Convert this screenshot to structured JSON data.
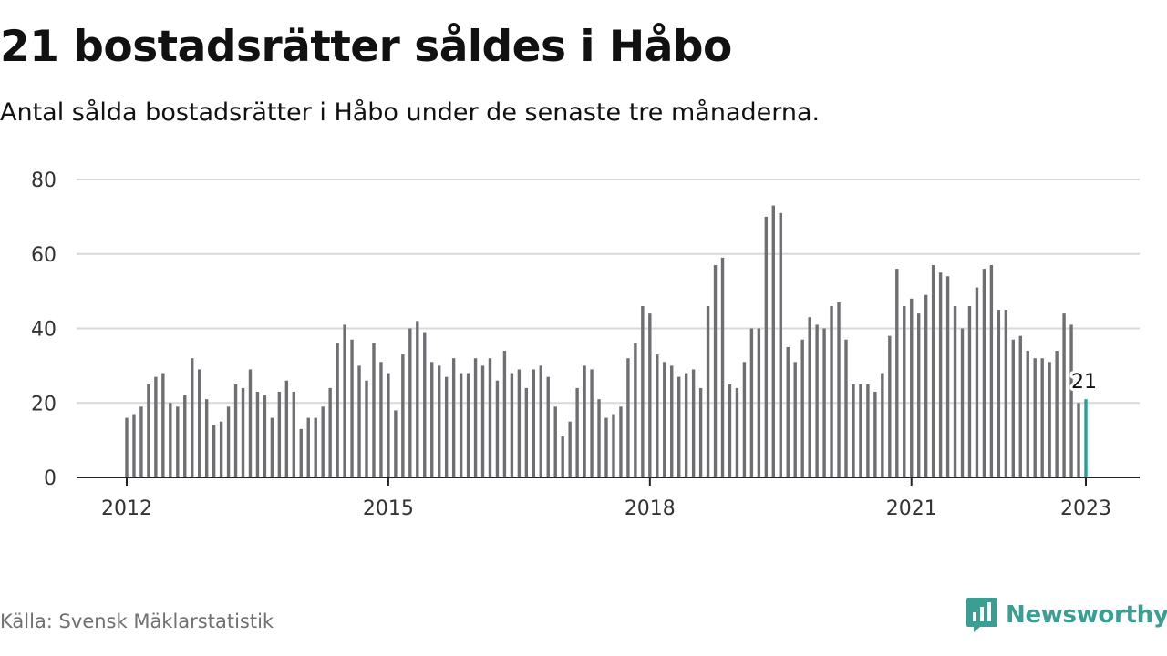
{
  "title": "21 bostadsrätter såldes i Håbo",
  "subtitle": "Antal sålda bostadsrätter i Håbo under de senaste tre månaderna.",
  "source": "Källa: Svensk Mäklarstatistik",
  "logo": {
    "name": "newsworthy-logo-icon",
    "text": "Newsworthy"
  },
  "colors": {
    "bar": "#6f6f73",
    "highlight": "#1fa39b",
    "grid": "#d9d9d9",
    "axis": "#222222",
    "brand": "#3a9e92"
  },
  "chart_data": {
    "type": "bar",
    "title": "21 bostadsrätter såldes i Håbo",
    "subtitle": "Antal sålda bostadsrätter i Håbo under de senaste tre månaderna.",
    "x_start": "2012-01",
    "x_interval": "month",
    "xticks": [
      "2012",
      "2015",
      "2018",
      "2021",
      "2023"
    ],
    "yticks": [
      0,
      20,
      40,
      60,
      80
    ],
    "ylim": [
      0,
      80
    ],
    "grid": true,
    "highlight_label": "21",
    "values": [
      16,
      17,
      19,
      25,
      27,
      28,
      20,
      19,
      22,
      32,
      29,
      21,
      14,
      15,
      19,
      25,
      24,
      29,
      23,
      22,
      16,
      23,
      26,
      23,
      13,
      16,
      16,
      19,
      24,
      36,
      41,
      37,
      30,
      26,
      36,
      31,
      28,
      18,
      33,
      40,
      42,
      39,
      31,
      30,
      27,
      32,
      28,
      28,
      32,
      30,
      32,
      26,
      34,
      28,
      29,
      24,
      29,
      30,
      27,
      19,
      11,
      15,
      24,
      30,
      29,
      21,
      16,
      17,
      19,
      32,
      36,
      46,
      44,
      33,
      31,
      30,
      27,
      28,
      29,
      24,
      46,
      57,
      59,
      25,
      24,
      31,
      40,
      40,
      70,
      73,
      71,
      35,
      31,
      37,
      43,
      41,
      40,
      46,
      47,
      37,
      25,
      25,
      25,
      23,
      28,
      38,
      56,
      46,
      48,
      44,
      49,
      57,
      55,
      54,
      46,
      40,
      46,
      51,
      56,
      57,
      45,
      45,
      37,
      38,
      34,
      32,
      32,
      31,
      34,
      44,
      41,
      20,
      21
    ]
  }
}
